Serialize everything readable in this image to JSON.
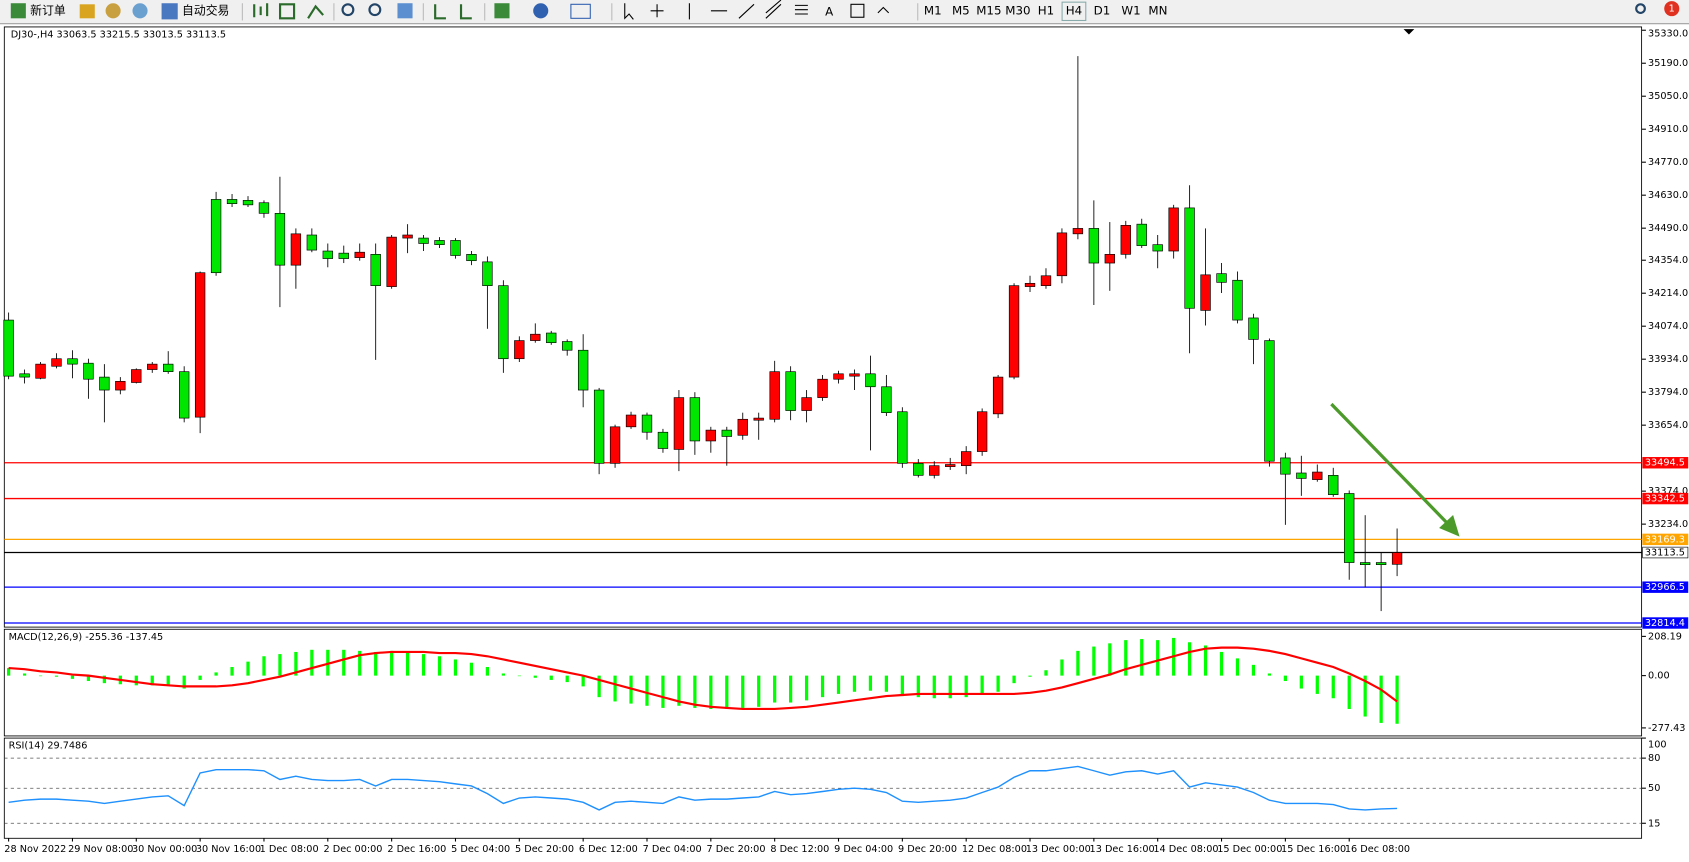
{
  "toolbar": {
    "new_order": "新订单",
    "auto_trading": "自动交易",
    "timeframes": [
      "M1",
      "M5",
      "M15",
      "M30",
      "H1",
      "H4",
      "D1",
      "W1",
      "MN"
    ],
    "badge": "1"
  },
  "chart_data": [
    {
      "type": "candlestick",
      "title": "DJ30-,H4",
      "up_color": "#ff0000",
      "down_color": "#00e600",
      "categories": [
        "28 Nov 2022",
        null,
        null,
        null,
        "29 Nov 08:00",
        null,
        null,
        null,
        "30 Nov 00:00",
        null,
        null,
        null,
        "30 Nov 16:00",
        null,
        null,
        null,
        "1 Dec 08:00",
        null,
        null,
        null,
        "2 Dec 00:00",
        null,
        null,
        null,
        "2 Dec 16:00",
        null,
        null,
        null,
        "5 Dec 04:00",
        null,
        null,
        null,
        "5 Dec 20:00",
        null,
        null,
        null,
        "6 Dec 12:00",
        null,
        null,
        null,
        "7 Dec 04:00",
        null,
        null,
        null,
        "7 Dec 20:00",
        null,
        null,
        null,
        "8 Dec 12:00",
        null,
        null,
        null,
        "9 Dec 04:00",
        null,
        null,
        null,
        "9 Dec 20:00",
        null,
        null,
        null,
        "12 Dec 08:00",
        null,
        null,
        null,
        "13 Dec 00:00",
        null,
        null,
        null,
        "13 Dec 16:00",
        null,
        null,
        null,
        "14 Dec 08:00",
        null,
        null,
        null,
        "15 Dec 00:00",
        null,
        null,
        null,
        "15 Dec 16:00",
        null,
        null,
        null,
        "16 Dec 08:00",
        null,
        null,
        null
      ],
      "ohlc": [
        [
          34100,
          34132,
          33849,
          33862
        ],
        [
          33872,
          33890,
          33831,
          33858
        ],
        [
          33853,
          33922,
          33849,
          33913
        ],
        [
          33904,
          33959,
          33895,
          33936
        ],
        [
          33936,
          33972,
          33853,
          33913
        ],
        [
          33917,
          33936,
          33766,
          33849
        ],
        [
          33858,
          33913,
          33666,
          33803
        ],
        [
          33803,
          33858,
          33785,
          33840
        ],
        [
          33835,
          33895,
          33831,
          33890
        ],
        [
          33890,
          33922,
          33876,
          33913
        ],
        [
          33913,
          33968,
          33872,
          33881
        ],
        [
          33881,
          33904,
          33666,
          33684
        ],
        [
          33688,
          34306,
          33620,
          34301
        ],
        [
          34612,
          34644,
          34288,
          34301
        ],
        [
          34612,
          34635,
          34580,
          34594
        ],
        [
          34608,
          34626,
          34580,
          34589
        ],
        [
          34598,
          34608,
          34534,
          34553
        ],
        [
          34553,
          34708,
          34155,
          34333
        ],
        [
          34333,
          34489,
          34233,
          34466
        ],
        [
          34461,
          34489,
          34388,
          34397
        ],
        [
          34393,
          34425,
          34324,
          34361
        ],
        [
          34384,
          34416,
          34342,
          34361
        ],
        [
          34365,
          34425,
          34352,
          34388
        ],
        [
          34379,
          34425,
          33931,
          34246
        ],
        [
          34242,
          34461,
          34233,
          34452
        ],
        [
          34448,
          34507,
          34384,
          34461
        ],
        [
          34448,
          34461,
          34393,
          34425
        ],
        [
          34438,
          34452,
          34406,
          34420
        ],
        [
          34438,
          34448,
          34361,
          34374
        ],
        [
          34379,
          34393,
          34333,
          34352
        ],
        [
          34347,
          34370,
          34063,
          34246
        ],
        [
          34246,
          34269,
          33876,
          33936
        ],
        [
          33936,
          34031,
          33922,
          34013
        ],
        [
          34013,
          34086,
          34004,
          34040
        ],
        [
          34045,
          34054,
          33995,
          34004
        ],
        [
          34009,
          34018,
          33949,
          33972
        ],
        [
          33972,
          34040,
          33730,
          33803
        ],
        [
          33803,
          33812,
          33446,
          33492
        ],
        [
          33492,
          33656,
          33473,
          33647
        ],
        [
          33647,
          33711,
          33638,
          33697
        ],
        [
          33697,
          33707,
          33592,
          33624
        ],
        [
          33624,
          33638,
          33537,
          33555
        ],
        [
          33551,
          33803,
          33459,
          33771
        ],
        [
          33771,
          33794,
          33528,
          33587
        ],
        [
          33587,
          33647,
          33537,
          33633
        ],
        [
          33633,
          33647,
          33482,
          33606
        ],
        [
          33611,
          33707,
          33592,
          33679
        ],
        [
          33675,
          33707,
          33592,
          33684
        ],
        [
          33679,
          33927,
          33666,
          33881
        ],
        [
          33881,
          33904,
          33675,
          33716
        ],
        [
          33716,
          33803,
          33666,
          33771
        ],
        [
          33771,
          33867,
          33757,
          33849
        ],
        [
          33849,
          33885,
          33831,
          33872
        ],
        [
          33862,
          33890,
          33803,
          33872
        ],
        [
          33872,
          33949,
          33547,
          33817
        ],
        [
          33817,
          33867,
          33693,
          33707
        ],
        [
          33711,
          33730,
          33473,
          33492
        ],
        [
          33492,
          33510,
          33432,
          33441
        ],
        [
          33441,
          33501,
          33428,
          33482
        ],
        [
          33478,
          33515,
          33464,
          33487
        ],
        [
          33482,
          33565,
          33446,
          33542
        ],
        [
          33542,
          33725,
          33524,
          33711
        ],
        [
          33702,
          33867,
          33684,
          33858
        ],
        [
          33858,
          34256,
          33849,
          34246
        ],
        [
          34242,
          34288,
          34219,
          34256
        ],
        [
          34246,
          34320,
          34233,
          34288
        ],
        [
          34288,
          34489,
          34256,
          34470
        ],
        [
          34466,
          35220,
          34443,
          34489
        ],
        [
          34489,
          34608,
          34164,
          34342
        ],
        [
          34342,
          34516,
          34224,
          34379
        ],
        [
          34379,
          34521,
          34361,
          34502
        ],
        [
          34507,
          34530,
          34406,
          34416
        ],
        [
          34420,
          34461,
          34320,
          34393
        ],
        [
          34393,
          34589,
          34361,
          34576
        ],
        [
          34576,
          34672,
          33959,
          34150
        ],
        [
          34141,
          34489,
          34077,
          34292
        ],
        [
          34297,
          34342,
          34215,
          34260
        ],
        [
          34269,
          34306,
          34086,
          34100
        ],
        [
          34109,
          34127,
          33913,
          34018
        ],
        [
          34013,
          34022,
          33478,
          33501
        ],
        [
          33515,
          33537,
          33231,
          33446
        ],
        [
          33451,
          33524,
          33354,
          33428
        ],
        [
          33423,
          33487,
          33414,
          33455
        ],
        [
          33441,
          33473,
          33350,
          33359
        ],
        [
          33364,
          33377,
          32998,
          33071
        ],
        [
          33071,
          33272,
          32966,
          33062
        ],
        [
          33071,
          33113,
          32865,
          33062
        ],
        [
          33063.5,
          33215.5,
          33013.5,
          33113.5
        ]
      ],
      "ylim": [
        32797,
        35344
      ],
      "yticks": [
        {
          "value": 35330,
          "label": "35330.0"
        },
        {
          "value": 35190,
          "label": "35190.0"
        },
        {
          "value": 35050,
          "label": "35050.0"
        },
        {
          "value": 34910,
          "label": "34910.0"
        },
        {
          "value": 34770,
          "label": "34770.0"
        },
        {
          "value": 34630,
          "label": "34630.0"
        },
        {
          "value": 34490,
          "label": "34490.0"
        },
        {
          "value": 34354,
          "label": "34354.0"
        },
        {
          "value": 34214,
          "label": "34214.0"
        },
        {
          "value": 34074,
          "label": "34074.0"
        },
        {
          "value": 33934,
          "label": "33934.0"
        },
        {
          "value": 33794,
          "label": "33794.0"
        },
        {
          "value": 33654,
          "label": "33654.0"
        },
        {
          "value": 33374,
          "label": "33374.0"
        },
        {
          "value": 33234,
          "label": "33234.0"
        }
      ],
      "levels": [
        {
          "value": 33494.5,
          "color": "#ff0000",
          "box_color": "#ff0000",
          "text_color": "#ffffff"
        },
        {
          "value": 33342.5,
          "color": "#ff0000",
          "box_color": "#ff0000",
          "text_color": "#ffffff"
        },
        {
          "value": 33169.3,
          "color": "#ffa500",
          "box_color": "#ffa500",
          "text_color": "#ffffff"
        },
        {
          "value": 33113.5,
          "color": "#000000",
          "box_color": "#ffffff",
          "text_color": "#000000"
        },
        {
          "value": 32966.5,
          "color": "#0000ff",
          "box_color": "#0000ff",
          "text_color": "#ffffff"
        },
        {
          "value": 32814.4,
          "color": "#0000ff",
          "box_color": "#0000ff",
          "text_color": "#ffffff"
        }
      ]
    },
    {
      "type": "macd",
      "title": "MACD(12,26,9)",
      "ylim": [
        -320,
        246
      ],
      "yticks": [
        208.19,
        {
          "value": 0,
          "label": "0.00"
        },
        -277.43
      ],
      "series": [
        {
          "style": "bar",
          "color": "#00ff00",
          "values": [
            40,
            11.4,
            0,
            -5.7,
            -17.1,
            -28.6,
            -40,
            -45.7,
            -51.4,
            -51.4,
            -51.4,
            -68.5,
            -22.8,
            17.1,
            45.7,
            74.2,
            102.8,
            114.2,
            125.6,
            137,
            137,
            137,
            131.3,
            125.6,
            131.3,
            125.6,
            114.2,
            102.8,
            85.7,
            68.5,
            45.7,
            11.4,
            0,
            -11.4,
            -22.8,
            -34.3,
            -57.1,
            -114.2,
            -137,
            -148.5,
            -160,
            -171.3,
            -160,
            -171.3,
            -177,
            -177,
            -171.3,
            -165.6,
            -142.8,
            -142.8,
            -131.3,
            -114.2,
            -97,
            -85.7,
            -80,
            -85.7,
            -108.5,
            -114.2,
            -120,
            -120,
            -114.2,
            -102.8,
            -85.7,
            -40,
            -5.7,
            28.6,
            85.7,
            131.3,
            154.2,
            171.3,
            188.4,
            194.1,
            188.4,
            200,
            177,
            160,
            125.6,
            91.4,
            57.1,
            11.4,
            -28.6,
            -68.5,
            -97,
            -120,
            -177,
            -217,
            -251,
            -255.36
          ]
        },
        {
          "style": "line",
          "color": "#ff0000",
          "values": [
            40,
            34.3,
            22.8,
            17.1,
            5.7,
            0,
            -11.4,
            -22.8,
            -34.3,
            -45.7,
            -51.4,
            -57.1,
            -57.1,
            -57.1,
            -51.4,
            -40,
            -22.8,
            -5.7,
            17.1,
            40,
            62.8,
            85.7,
            108.5,
            119.9,
            125.6,
            125.6,
            125.6,
            119.9,
            119.9,
            114.2,
            102.8,
            85.7,
            68.5,
            51.4,
            34.3,
            17.1,
            0,
            -22.8,
            -45.7,
            -68.5,
            -91.4,
            -114.2,
            -137,
            -154.2,
            -165.6,
            -171.3,
            -177,
            -177,
            -177,
            -171.3,
            -165.6,
            -154.2,
            -142.8,
            -131.3,
            -120,
            -108.5,
            -102.8,
            -97,
            -97,
            -97,
            -97,
            -97,
            -97,
            -97,
            -91.4,
            -80,
            -62.8,
            -40,
            -17.1,
            5.7,
            34.3,
            57.1,
            80,
            102.8,
            125.6,
            142.8,
            148.5,
            148.5,
            142.8,
            131.3,
            114.2,
            91.4,
            68.5,
            45.7,
            11.4,
            -28.6,
            -74.2,
            -137.45
          ]
        }
      ]
    },
    {
      "type": "line",
      "title": "RSI(14)",
      "ylim": [
        0,
        100
      ],
      "yticks": [
        100,
        80,
        50,
        15
      ],
      "level_lines": true,
      "series": [
        {
          "color": "#1e90ff",
          "values": [
            35.9,
            38.0,
            39.1,
            39.1,
            38.0,
            37.0,
            34.8,
            37.0,
            39.1,
            41.3,
            42.4,
            32.6,
            65.2,
            68.5,
            68.5,
            68.5,
            67.4,
            58.7,
            62.0,
            58.7,
            57.6,
            57.6,
            58.7,
            52.2,
            58.7,
            58.7,
            57.6,
            56.5,
            54.3,
            52.2,
            44.6,
            34.8,
            40.2,
            41.3,
            40.2,
            39.1,
            35.9,
            28.3,
            35.9,
            37.0,
            35.9,
            34.8,
            41.3,
            38.0,
            39.1,
            39.1,
            40.2,
            41.3,
            46.7,
            43.5,
            44.6,
            46.7,
            48.9,
            50.0,
            48.9,
            45.7,
            37.0,
            35.9,
            37.0,
            38.0,
            40.2,
            45.7,
            51.1,
            60.9,
            67.4,
            67.4,
            69.6,
            71.7,
            67.4,
            63.0,
            66.3,
            67.4,
            64.1,
            67.4,
            51.1,
            55.4,
            53.3,
            51.1,
            45.7,
            38.0,
            34.8,
            34.8,
            34.8,
            33.7,
            29.3,
            28.3,
            29.3,
            29.7486
          ]
        }
      ]
    }
  ]
}
